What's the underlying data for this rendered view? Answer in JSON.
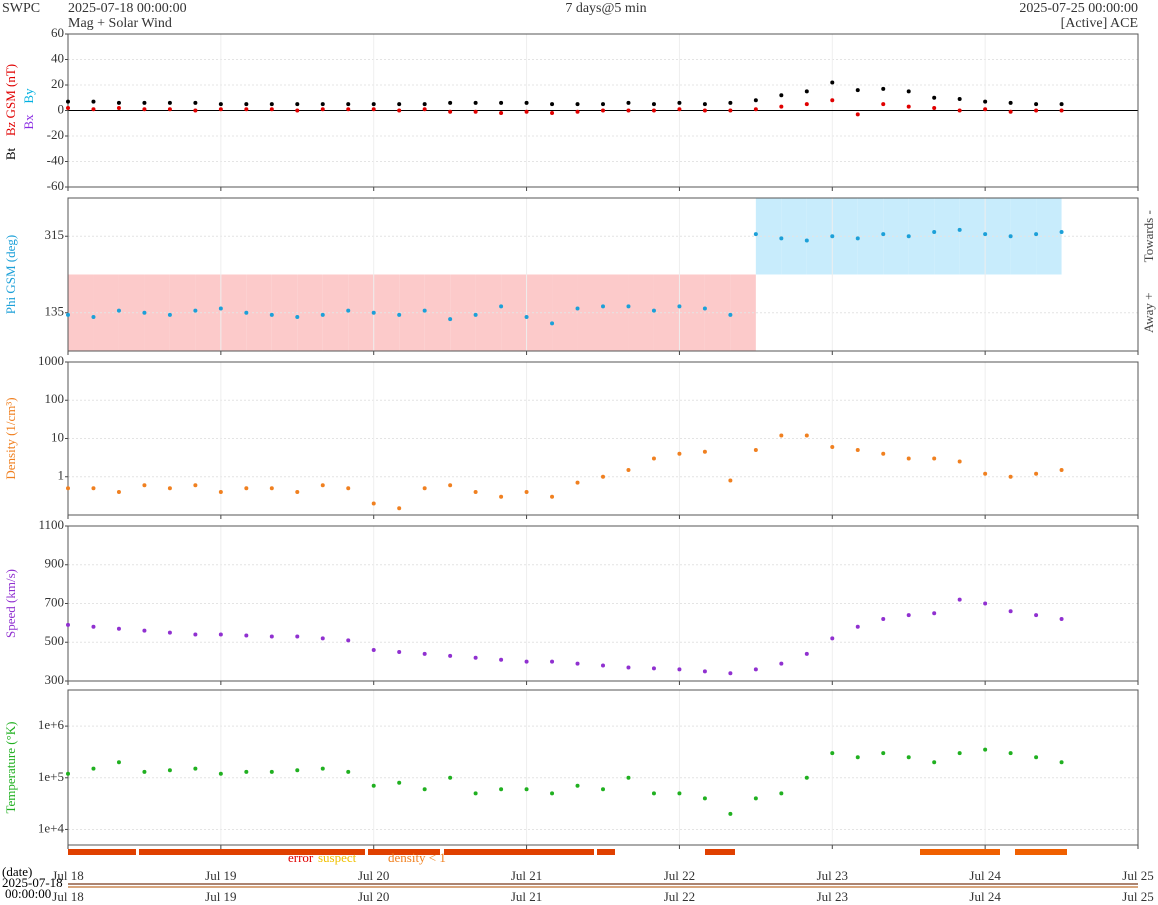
{
  "header": {
    "source": "SWPC",
    "subtitle": "Mag + Solar Wind",
    "cadence": "7 days@5 min",
    "satellite": "[Active] ACE"
  },
  "overview": {
    "label": "(date)",
    "start_date": "2025-07-18",
    "start_time": "00:00:00"
  },
  "status_legend": [
    {
      "label": "error",
      "color": "#e00000"
    },
    {
      "label": "suspect",
      "color": "#f0c000"
    },
    {
      "label": "density < 1",
      "color": "#f08020"
    }
  ],
  "chart_data": [
    {
      "type": "scatter",
      "ylabels": [
        {
          "text": "Bt",
          "color": "#000000"
        },
        {
          "text": "Bz GSM (nT)",
          "color": "#e00000"
        },
        {
          "text": "By",
          "color": "#00b0e0"
        },
        {
          "text": "Bx",
          "color": "#8a2be2"
        }
      ],
      "xlim": [
        "2025-07-18 00:00:00",
        "2025-07-25 00:00:00"
      ],
      "xticks": [
        {
          "value": "2025-07-18 00:00",
          "label": "Jul 18"
        },
        {
          "value": "2025-07-19 00:00",
          "label": "Jul 19"
        },
        {
          "value": "2025-07-20 00:00",
          "label": "Jul 20"
        },
        {
          "value": "2025-07-21 00:00",
          "label": "Jul 21"
        },
        {
          "value": "2025-07-22 00:00",
          "label": "Jul 22"
        },
        {
          "value": "2025-07-23 00:00",
          "label": "Jul 23"
        },
        {
          "value": "2025-07-24 00:00",
          "label": "Jul 24"
        },
        {
          "value": "2025-07-25 00:00",
          "label": "Jul 25"
        }
      ],
      "ylim": [
        -60,
        60
      ],
      "yticks": [
        -60,
        -40,
        -20,
        0,
        20,
        40,
        60
      ],
      "grid": true,
      "x": [
        "2025-07-18 00:00",
        "2025-07-18 04:00",
        "2025-07-18 08:00",
        "2025-07-18 12:00",
        "2025-07-18 16:00",
        "2025-07-18 20:00",
        "2025-07-19 00:00",
        "2025-07-19 04:00",
        "2025-07-19 08:00",
        "2025-07-19 12:00",
        "2025-07-19 16:00",
        "2025-07-19 20:00",
        "2025-07-20 00:00",
        "2025-07-20 04:00",
        "2025-07-20 08:00",
        "2025-07-20 12:00",
        "2025-07-20 16:00",
        "2025-07-20 20:00",
        "2025-07-21 00:00",
        "2025-07-21 04:00",
        "2025-07-21 08:00",
        "2025-07-21 12:00",
        "2025-07-21 16:00",
        "2025-07-21 20:00",
        "2025-07-22 00:00",
        "2025-07-22 04:00",
        "2025-07-22 08:00",
        "2025-07-22 12:00",
        "2025-07-22 16:00",
        "2025-07-22 20:00",
        "2025-07-23 00:00",
        "2025-07-23 04:00",
        "2025-07-23 08:00",
        "2025-07-23 12:00",
        "2025-07-23 16:00",
        "2025-07-23 20:00",
        "2025-07-24 00:00",
        "2025-07-24 04:00",
        "2025-07-24 08:00",
        "2025-07-24 12:00"
      ],
      "series": [
        {
          "name": "Bt",
          "color": "#000000",
          "values": [
            7,
            7,
            6,
            6,
            6,
            6,
            5,
            5,
            5,
            5,
            5,
            5,
            5,
            5,
            5,
            6,
            6,
            6,
            6,
            5,
            5,
            5,
            6,
            5,
            6,
            5,
            6,
            8,
            12,
            15,
            22,
            16,
            17,
            15,
            10,
            9,
            7,
            6,
            5,
            5
          ]
        },
        {
          "name": "Bz",
          "color": "#e00000",
          "values": [
            2,
            1,
            2,
            1,
            1,
            0,
            1,
            1,
            1,
            0,
            1,
            1,
            1,
            0,
            1,
            -1,
            -1,
            -2,
            -1,
            -2,
            -1,
            0,
            0,
            0,
            1,
            0,
            0,
            1,
            3,
            5,
            8,
            -3,
            5,
            3,
            2,
            0,
            1,
            -1,
            0,
            0
          ]
        }
      ]
    },
    {
      "type": "scatter",
      "ylabels": [
        {
          "text": "Phi GSM (deg)",
          "color": "#1ca0d8"
        }
      ],
      "sector_labels": [
        "Towards -",
        "Away +"
      ],
      "sector_colors": [
        "#c8ecfc",
        "#fccaca"
      ],
      "xlim": [
        "2025-07-18 00:00:00",
        "2025-07-25 00:00:00"
      ],
      "xticks": [
        {
          "value": "2025-07-18 00:00",
          "label": "Jul 18"
        },
        {
          "value": "2025-07-19 00:00",
          "label": "Jul 19"
        },
        {
          "value": "2025-07-20 00:00",
          "label": "Jul 20"
        },
        {
          "value": "2025-07-21 00:00",
          "label": "Jul 21"
        },
        {
          "value": "2025-07-22 00:00",
          "label": "Jul 22"
        },
        {
          "value": "2025-07-23 00:00",
          "label": "Jul 23"
        },
        {
          "value": "2025-07-24 00:00",
          "label": "Jul 24"
        },
        {
          "value": "2025-07-25 00:00",
          "label": "Jul 25"
        }
      ],
      "ylim": [
        45,
        405
      ],
      "yticks": [
        135,
        315
      ],
      "grid": true,
      "x": [
        "2025-07-18 00:00",
        "2025-07-18 04:00",
        "2025-07-18 08:00",
        "2025-07-18 12:00",
        "2025-07-18 16:00",
        "2025-07-18 20:00",
        "2025-07-19 00:00",
        "2025-07-19 04:00",
        "2025-07-19 08:00",
        "2025-07-19 12:00",
        "2025-07-19 16:00",
        "2025-07-19 20:00",
        "2025-07-20 00:00",
        "2025-07-20 04:00",
        "2025-07-20 08:00",
        "2025-07-20 12:00",
        "2025-07-20 16:00",
        "2025-07-20 20:00",
        "2025-07-21 00:00",
        "2025-07-21 04:00",
        "2025-07-21 08:00",
        "2025-07-21 12:00",
        "2025-07-21 16:00",
        "2025-07-21 20:00",
        "2025-07-22 00:00",
        "2025-07-22 04:00",
        "2025-07-22 08:00",
        "2025-07-22 12:00",
        "2025-07-22 16:00",
        "2025-07-22 20:00",
        "2025-07-23 00:00",
        "2025-07-23 04:00",
        "2025-07-23 08:00",
        "2025-07-23 12:00",
        "2025-07-23 16:00",
        "2025-07-23 20:00",
        "2025-07-24 00:00",
        "2025-07-24 04:00",
        "2025-07-24 08:00",
        "2025-07-24 12:00"
      ],
      "series": [
        {
          "name": "Phi",
          "color": "#1ca0d8",
          "values": [
            130,
            125,
            140,
            135,
            130,
            140,
            145,
            135,
            130,
            125,
            130,
            140,
            135,
            130,
            140,
            120,
            130,
            150,
            125,
            110,
            145,
            150,
            150,
            140,
            150,
            145,
            130,
            320,
            310,
            305,
            315,
            310,
            320,
            315,
            325,
            330,
            320,
            315,
            320,
            325
          ]
        }
      ]
    },
    {
      "type": "scatter",
      "log": true,
      "ylabels": [
        {
          "text": "Density (1/cm³)",
          "color": "#f08020"
        }
      ],
      "xlim": [
        "2025-07-18 00:00:00",
        "2025-07-25 00:00:00"
      ],
      "xticks": [
        {
          "value": "2025-07-18 00:00",
          "label": "Jul 18"
        },
        {
          "value": "2025-07-19 00:00",
          "label": "Jul 19"
        },
        {
          "value": "2025-07-20 00:00",
          "label": "Jul 20"
        },
        {
          "value": "2025-07-21 00:00",
          "label": "Jul 21"
        },
        {
          "value": "2025-07-22 00:00",
          "label": "Jul 22"
        },
        {
          "value": "2025-07-23 00:00",
          "label": "Jul 23"
        },
        {
          "value": "2025-07-24 00:00",
          "label": "Jul 24"
        },
        {
          "value": "2025-07-25 00:00",
          "label": "Jul 25"
        }
      ],
      "ylim": [
        0.1,
        1000
      ],
      "yticks": [
        1,
        10,
        100,
        1000
      ],
      "grid": true,
      "x": [
        "2025-07-18 00:00",
        "2025-07-18 04:00",
        "2025-07-18 08:00",
        "2025-07-18 12:00",
        "2025-07-18 16:00",
        "2025-07-18 20:00",
        "2025-07-19 00:00",
        "2025-07-19 04:00",
        "2025-07-19 08:00",
        "2025-07-19 12:00",
        "2025-07-19 16:00",
        "2025-07-19 20:00",
        "2025-07-20 00:00",
        "2025-07-20 04:00",
        "2025-07-20 08:00",
        "2025-07-20 12:00",
        "2025-07-20 16:00",
        "2025-07-20 20:00",
        "2025-07-21 00:00",
        "2025-07-21 04:00",
        "2025-07-21 08:00",
        "2025-07-21 12:00",
        "2025-07-21 16:00",
        "2025-07-21 20:00",
        "2025-07-22 00:00",
        "2025-07-22 04:00",
        "2025-07-22 08:00",
        "2025-07-22 12:00",
        "2025-07-22 16:00",
        "2025-07-22 20:00",
        "2025-07-23 00:00",
        "2025-07-23 04:00",
        "2025-07-23 08:00",
        "2025-07-23 12:00",
        "2025-07-23 16:00",
        "2025-07-23 20:00",
        "2025-07-24 00:00",
        "2025-07-24 04:00",
        "2025-07-24 08:00",
        "2025-07-24 12:00"
      ],
      "series": [
        {
          "name": "Density",
          "color": "#f08020",
          "values": [
            0.5,
            0.5,
            0.4,
            0.6,
            0.5,
            0.6,
            0.4,
            0.5,
            0.5,
            0.4,
            0.6,
            0.5,
            0.2,
            0.15,
            0.5,
            0.6,
            0.4,
            0.3,
            0.4,
            0.3,
            0.7,
            1,
            1.5,
            3,
            4,
            4.5,
            0.8,
            5,
            12,
            12,
            6,
            5,
            4,
            3,
            3,
            2.5,
            1.2,
            1,
            1.2,
            1.5
          ]
        }
      ]
    },
    {
      "type": "scatter",
      "ylabels": [
        {
          "text": "Speed (km/s)",
          "color": "#9030d0"
        }
      ],
      "xlim": [
        "2025-07-18 00:00:00",
        "2025-07-25 00:00:00"
      ],
      "xticks": [
        {
          "value": "2025-07-18 00:00",
          "label": "Jul 18"
        },
        {
          "value": "2025-07-19 00:00",
          "label": "Jul 19"
        },
        {
          "value": "2025-07-20 00:00",
          "label": "Jul 20"
        },
        {
          "value": "2025-07-21 00:00",
          "label": "Jul 21"
        },
        {
          "value": "2025-07-22 00:00",
          "label": "Jul 22"
        },
        {
          "value": "2025-07-23 00:00",
          "label": "Jul 23"
        },
        {
          "value": "2025-07-24 00:00",
          "label": "Jul 24"
        },
        {
          "value": "2025-07-25 00:00",
          "label": "Jul 25"
        }
      ],
      "ylim": [
        300,
        1100
      ],
      "yticks": [
        300,
        500,
        700,
        900,
        1100
      ],
      "grid": true,
      "x": [
        "2025-07-18 00:00",
        "2025-07-18 04:00",
        "2025-07-18 08:00",
        "2025-07-18 12:00",
        "2025-07-18 16:00",
        "2025-07-18 20:00",
        "2025-07-19 00:00",
        "2025-07-19 04:00",
        "2025-07-19 08:00",
        "2025-07-19 12:00",
        "2025-07-19 16:00",
        "2025-07-19 20:00",
        "2025-07-20 00:00",
        "2025-07-20 04:00",
        "2025-07-20 08:00",
        "2025-07-20 12:00",
        "2025-07-20 16:00",
        "2025-07-20 20:00",
        "2025-07-21 00:00",
        "2025-07-21 04:00",
        "2025-07-21 08:00",
        "2025-07-21 12:00",
        "2025-07-21 16:00",
        "2025-07-21 20:00",
        "2025-07-22 00:00",
        "2025-07-22 04:00",
        "2025-07-22 08:00",
        "2025-07-22 12:00",
        "2025-07-22 16:00",
        "2025-07-22 20:00",
        "2025-07-23 00:00",
        "2025-07-23 04:00",
        "2025-07-23 08:00",
        "2025-07-23 12:00",
        "2025-07-23 16:00",
        "2025-07-23 20:00",
        "2025-07-24 00:00",
        "2025-07-24 04:00",
        "2025-07-24 08:00",
        "2025-07-24 12:00"
      ],
      "series": [
        {
          "name": "Speed",
          "color": "#9030d0",
          "values": [
            590,
            580,
            570,
            560,
            550,
            540,
            540,
            535,
            530,
            530,
            520,
            510,
            460,
            450,
            440,
            430,
            420,
            410,
            400,
            400,
            390,
            380,
            370,
            365,
            360,
            350,
            340,
            360,
            390,
            440,
            520,
            580,
            620,
            640,
            650,
            720,
            700,
            660,
            640,
            620
          ]
        }
      ]
    },
    {
      "type": "scatter",
      "log": true,
      "ylabels": [
        {
          "text": "Temperature (°K)",
          "color": "#20b020"
        }
      ],
      "xlim": [
        "2025-07-18 00:00:00",
        "2025-07-25 00:00:00"
      ],
      "xticks": [
        {
          "value": "2025-07-18 00:00",
          "label": "Jul 18"
        },
        {
          "value": "2025-07-19 00:00",
          "label": "Jul 19"
        },
        {
          "value": "2025-07-20 00:00",
          "label": "Jul 20"
        },
        {
          "value": "2025-07-21 00:00",
          "label": "Jul 21"
        },
        {
          "value": "2025-07-22 00:00",
          "label": "Jul 22"
        },
        {
          "value": "2025-07-23 00:00",
          "label": "Jul 23"
        },
        {
          "value": "2025-07-24 00:00",
          "label": "Jul 24"
        },
        {
          "value": "2025-07-25 00:00",
          "label": "Jul 25"
        }
      ],
      "ylim": [
        5000,
        5000000
      ],
      "yticks": [
        {
          "value": 10000,
          "label": "1e+4"
        },
        {
          "value": 100000,
          "label": "1e+5"
        },
        {
          "value": 1000000,
          "label": "1e+6"
        }
      ],
      "grid": true,
      "x": [
        "2025-07-18 00:00",
        "2025-07-18 04:00",
        "2025-07-18 08:00",
        "2025-07-18 12:00",
        "2025-07-18 16:00",
        "2025-07-18 20:00",
        "2025-07-19 00:00",
        "2025-07-19 04:00",
        "2025-07-19 08:00",
        "2025-07-19 12:00",
        "2025-07-19 16:00",
        "2025-07-19 20:00",
        "2025-07-20 00:00",
        "2025-07-20 04:00",
        "2025-07-20 08:00",
        "2025-07-20 12:00",
        "2025-07-20 16:00",
        "2025-07-20 20:00",
        "2025-07-21 00:00",
        "2025-07-21 04:00",
        "2025-07-21 08:00",
        "2025-07-21 12:00",
        "2025-07-21 16:00",
        "2025-07-21 20:00",
        "2025-07-22 00:00",
        "2025-07-22 04:00",
        "2025-07-22 08:00",
        "2025-07-22 12:00",
        "2025-07-22 16:00",
        "2025-07-22 20:00",
        "2025-07-23 00:00",
        "2025-07-23 04:00",
        "2025-07-23 08:00",
        "2025-07-23 12:00",
        "2025-07-23 16:00",
        "2025-07-23 20:00",
        "2025-07-24 00:00",
        "2025-07-24 04:00",
        "2025-07-24 08:00",
        "2025-07-24 12:00"
      ],
      "series": [
        {
          "name": "Temperature",
          "color": "#20b020",
          "values": [
            120000,
            150000,
            200000,
            130000,
            140000,
            150000,
            120000,
            130000,
            130000,
            140000,
            150000,
            130000,
            70000,
            80000,
            60000,
            100000,
            50000,
            60000,
            60000,
            50000,
            70000,
            60000,
            100000,
            50000,
            50000,
            40000,
            20000,
            40000,
            50000,
            100000,
            300000,
            250000,
            300000,
            250000,
            200000,
            300000,
            350000,
            300000,
            250000,
            200000
          ]
        }
      ]
    }
  ]
}
